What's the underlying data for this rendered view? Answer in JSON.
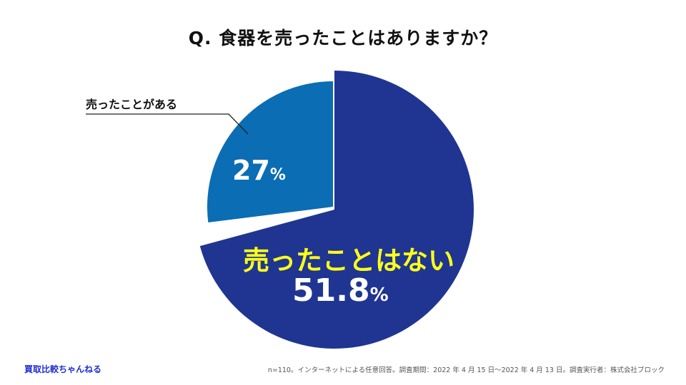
{
  "title": "Q. 食器を売ったことはありますか？",
  "chart_data": {
    "type": "pie",
    "slices": [
      {
        "label": "売ったことはない",
        "value": 51.8,
        "color": "#1f3591",
        "label_color": "#ffff1a",
        "value_color": "#ffffff"
      },
      {
        "label": "売ったことがある",
        "value": 27.0,
        "color": "#0b6db3",
        "label_color": "#111111",
        "value_color": "#ffffff"
      }
    ],
    "unit": "%"
  },
  "brand": "買取比較ちゃんねる",
  "footnote": "n=110。インターネットによる任意回答。調査期間：2022 年 4 月 15 日〜2022 年 4 月 13 日。調査実行者：株式会社ブロック"
}
